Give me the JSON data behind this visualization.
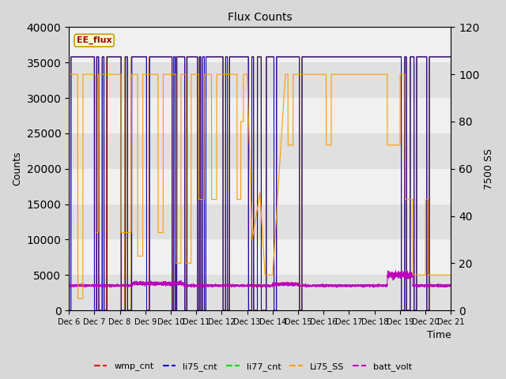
{
  "title": "Flux Counts",
  "ylabel_left": "Counts",
  "ylabel_right": "7500 SS",
  "xlabel": "Time",
  "annotation": "EE_flux",
  "ylim_left": [
    0,
    40000
  ],
  "ylim_right": [
    0,
    120
  ],
  "yticks_left": [
    0,
    5000,
    10000,
    15000,
    20000,
    25000,
    30000,
    35000,
    40000
  ],
  "yticks_right": [
    0,
    20,
    40,
    60,
    80,
    100,
    120
  ],
  "bg_color": "#d8d8d8",
  "plot_bg_color": "#e8e8e8",
  "band_colors": [
    "#e0e0e0",
    "#f0f0f0"
  ],
  "colors": {
    "wmp_cnt": "#ff0000",
    "li75_cnt": "#0000cc",
    "li77_cnt": "#00dd00",
    "Li75_SS": "#ff9900",
    "batt_volt": "#bb00bb"
  },
  "xtick_labels": [
    "Dec 6",
    "Dec 7",
    "Dec 8",
    "Dec 9",
    "Dec 10",
    "Dec 11",
    "Dec 12",
    "Dec 13",
    "Dec 14",
    "Dec 15",
    "Dec 16",
    "Dec 17",
    "Dec 18",
    "Dec 19",
    "Dec 20",
    "Dec 21"
  ]
}
